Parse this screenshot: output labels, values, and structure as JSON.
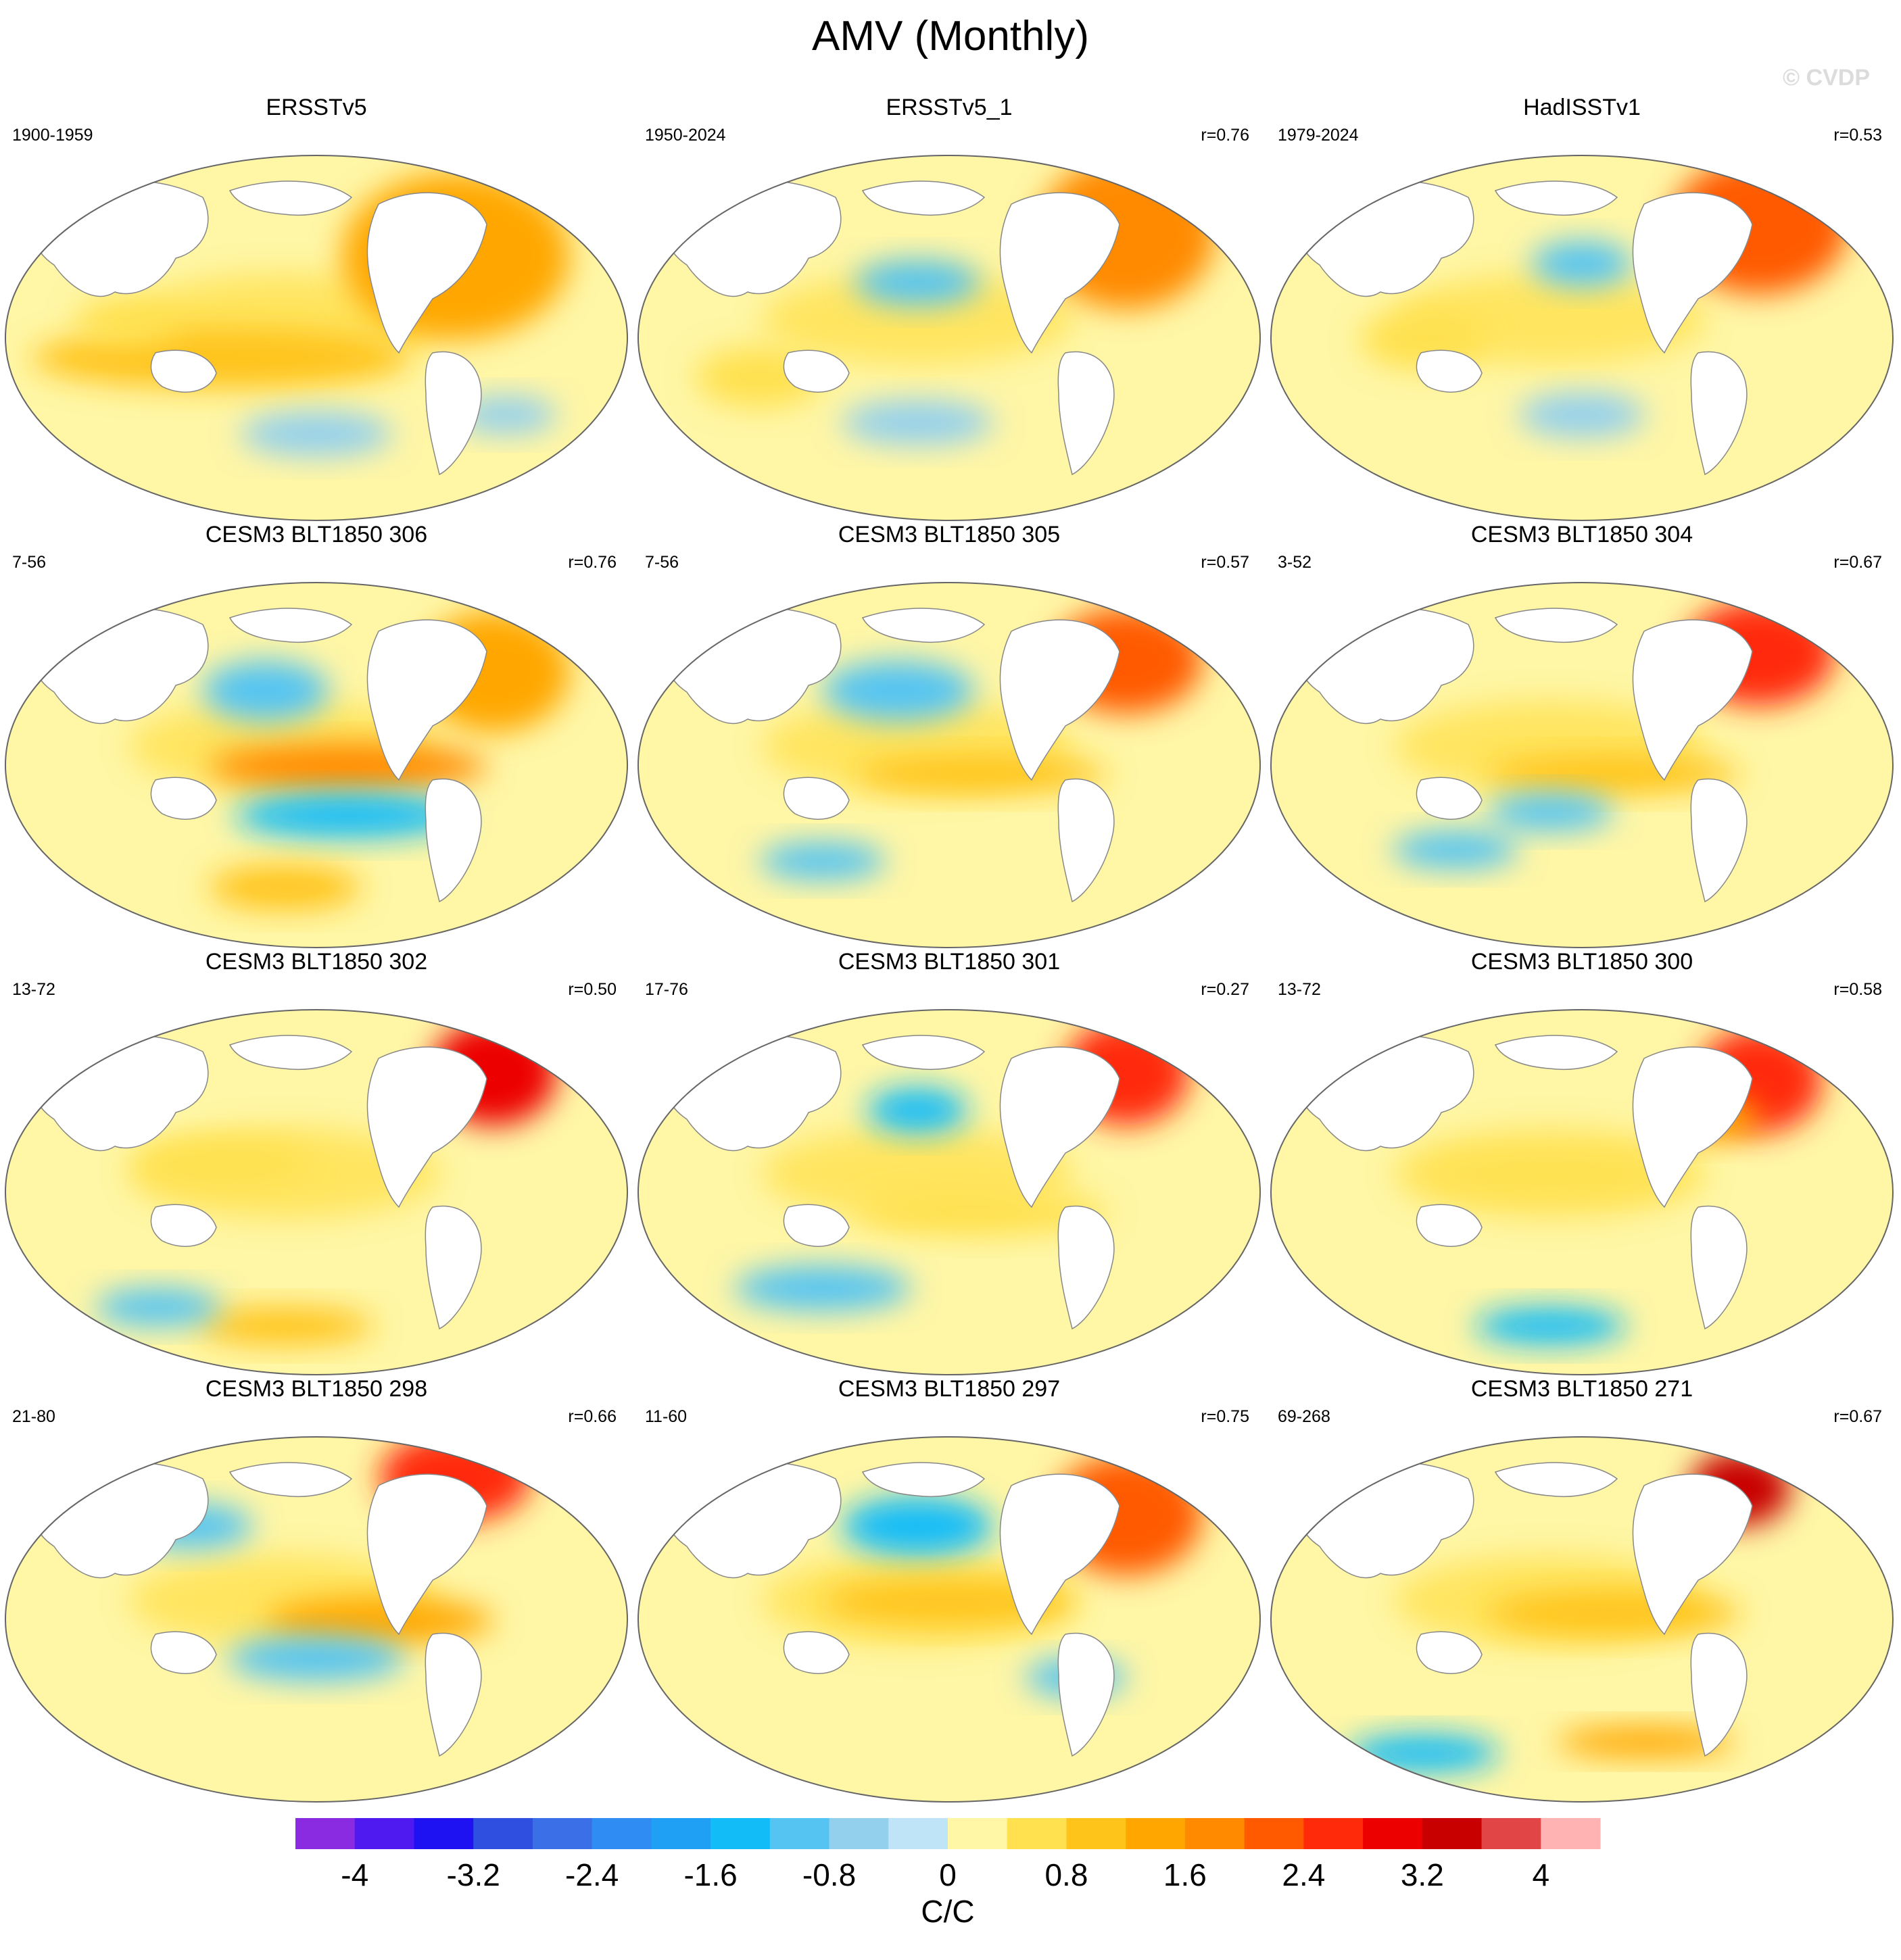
{
  "title": "AMV (Monthly)",
  "credit": "© CVDP",
  "colorbar": {
    "units": "C/C",
    "tick_labels": [
      "-4",
      "-3.2",
      "-2.4",
      "-1.6",
      "-0.8",
      "0",
      "0.8",
      "1.6",
      "2.4",
      "3.2",
      "4"
    ],
    "bins": [
      "#8a2be2",
      "#4f1af0",
      "#1f12f2",
      "#2f4fe0",
      "#3a6fe8",
      "#2f8cf2",
      "#1fa0f5",
      "#12bdf7",
      "#55c4f2",
      "#93d0ee",
      "#bfe3f7",
      "#fff6a6",
      "#ffe14f",
      "#ffc41a",
      "#ffa700",
      "#ff8a00",
      "#ff5a00",
      "#ff2a0a",
      "#ec0000",
      "#c80000",
      "#e24545",
      "#ffb3b3"
    ]
  },
  "panels": [
    {
      "title": "ERSSTv5",
      "period": "1900-1959",
      "corr": ""
    },
    {
      "title": "ERSSTv5_1",
      "period": "1950-2024",
      "corr": "r=0.76"
    },
    {
      "title": "HadISSTv1",
      "period": "1979-2024",
      "corr": "r=0.53"
    },
    {
      "title": "CESM3 BLT1850 306",
      "period": "7-56",
      "corr": "r=0.76"
    },
    {
      "title": "CESM3 BLT1850 305",
      "period": "7-56",
      "corr": "r=0.57"
    },
    {
      "title": "CESM3 BLT1850 304",
      "period": "3-52",
      "corr": "r=0.67"
    },
    {
      "title": "CESM3 BLT1850 302",
      "period": "13-72",
      "corr": "r=0.50"
    },
    {
      "title": "CESM3 BLT1850 301",
      "period": "17-76",
      "corr": "r=0.27"
    },
    {
      "title": "CESM3 BLT1850 300",
      "period": "13-72",
      "corr": "r=0.58"
    },
    {
      "title": "CESM3 BLT1850 298",
      "period": "21-80",
      "corr": "r=0.66"
    },
    {
      "title": "CESM3 BLT1850 297",
      "period": "11-60",
      "corr": "r=0.75"
    },
    {
      "title": "CESM3 BLT1850 271",
      "period": "69-268",
      "corr": "r=0.67"
    }
  ]
}
